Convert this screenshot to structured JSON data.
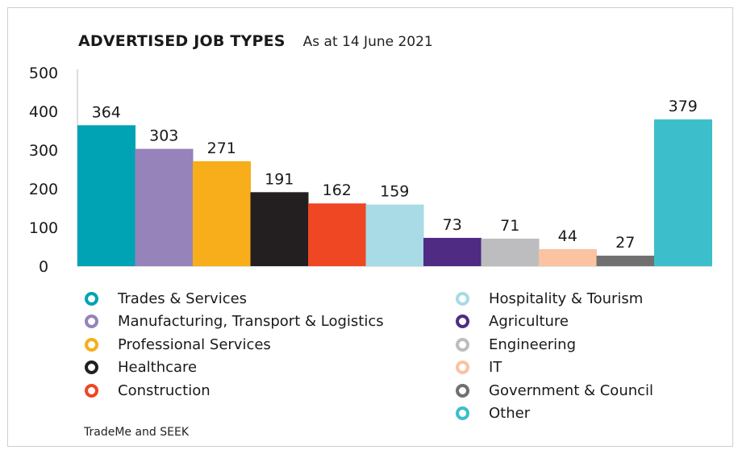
{
  "chart_data": {
    "type": "bar",
    "title": "ADVERTISED JOB TYPES",
    "subtitle": "As at 14 June 2021",
    "categories": [
      "Trades & Services",
      "Manufacturing, Transport & Logistics",
      "Professional Services",
      "Healthcare",
      "Construction",
      "Hospitality & Tourism",
      "Agriculture",
      "Engineering",
      "IT",
      "Government & Council",
      "Other"
    ],
    "values": [
      364,
      303,
      271,
      191,
      162,
      159,
      73,
      71,
      44,
      27,
      379
    ],
    "colors": [
      "#00a3b4",
      "#9683ba",
      "#f7ae1a",
      "#231f20",
      "#ef4623",
      "#a8dbe6",
      "#4f2b84",
      "#bdbdbf",
      "#fbc3a2",
      "#707070",
      "#3cbfcb"
    ],
    "ylim": [
      0,
      500
    ],
    "yticks": [
      "0",
      "100",
      "200",
      "300",
      "400",
      "500"
    ],
    "xlabel": "",
    "ylabel": "",
    "grid": false,
    "legend_placement": "bottom",
    "source": "TradeMe and SEEK"
  }
}
